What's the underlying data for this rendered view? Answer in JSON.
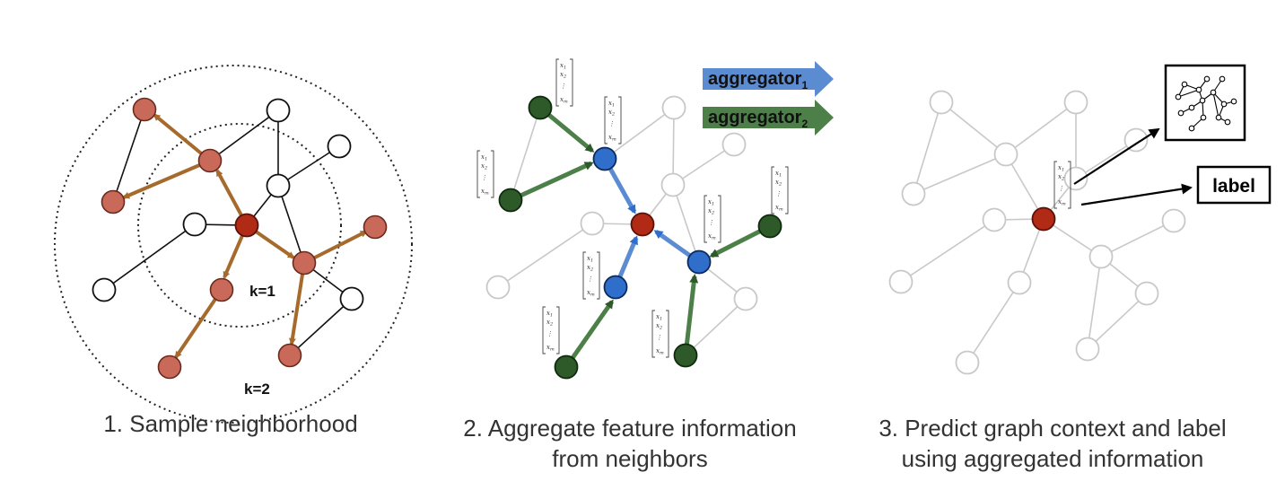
{
  "panel1": {
    "caption": "1. Sample neighborhood",
    "k1_label": "k=1",
    "k2_label": "k=2"
  },
  "panel2": {
    "caption_line1": "2. Aggregate feature information",
    "caption_line2": "from neighbors",
    "aggregator1": {
      "text": "aggregator",
      "sub": "1"
    },
    "aggregator2": {
      "text": "aggregator",
      "sub": "2"
    }
  },
  "panel3": {
    "caption_line1": "3. Predict graph context and label",
    "caption_line2": "using aggregated information",
    "label_box": "label"
  },
  "feature_vector": {
    "x1": "x",
    "s1": "1",
    "x2": "x",
    "s2": "2",
    "dots": "⋮",
    "xm": "x",
    "sm": "m"
  },
  "colors": {
    "target_node": "#b02a16",
    "sampled_node": "#c9695a",
    "unsampled_node": "#ffffff",
    "sample_edge": "#a66a2c",
    "hop1_node": "#2f6fcb",
    "hop2_node": "#2e5a2a",
    "aggregator1_arrow": "#5b8bd0",
    "aggregator2_arrow": "#4d7f49",
    "faded_node": "#c8c8c8"
  }
}
